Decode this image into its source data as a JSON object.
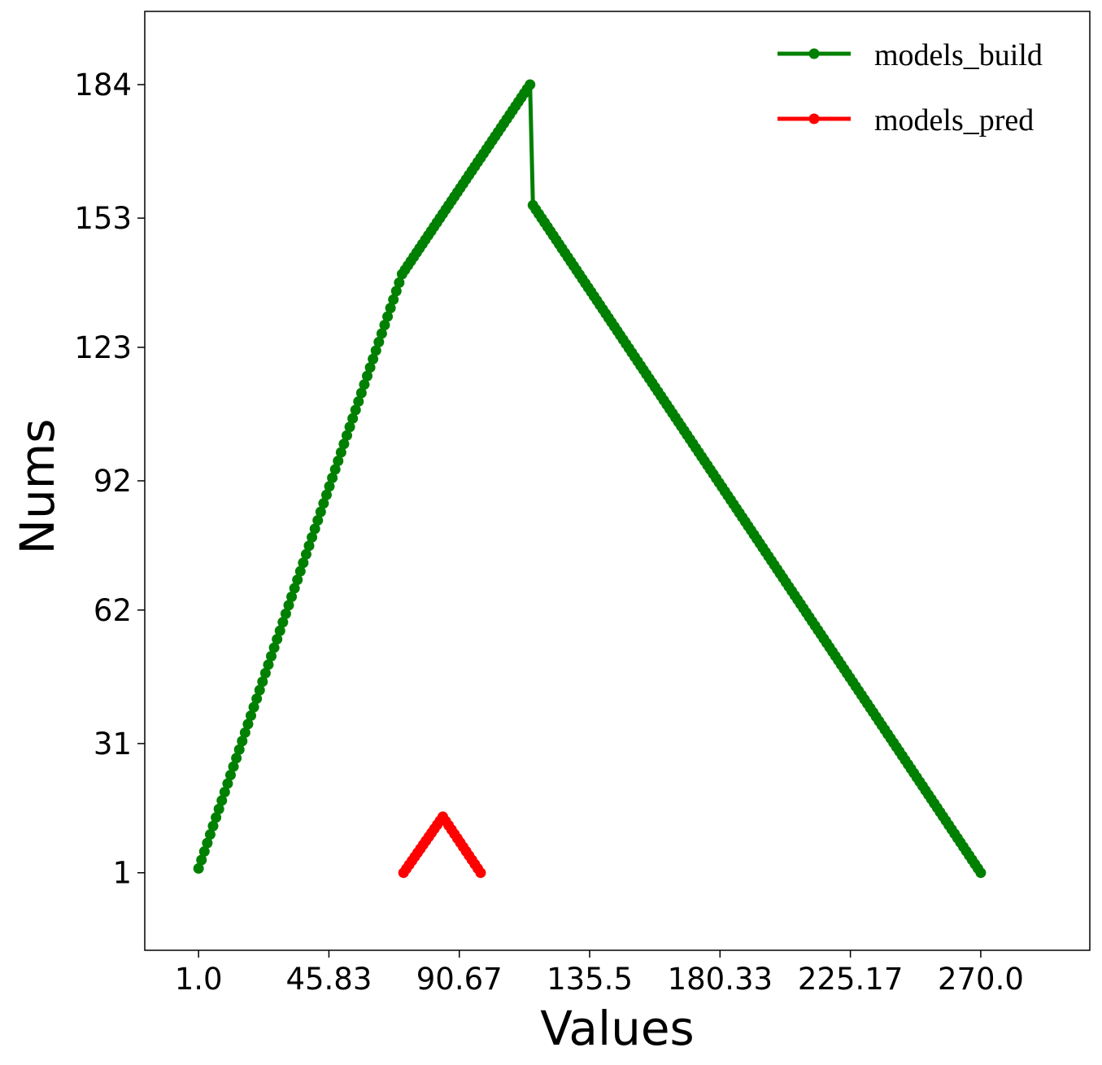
{
  "chart_data": {
    "type": "line",
    "xlabel": "Values",
    "ylabel": "Nums",
    "xlim": [
      -17.5,
      307.5
    ],
    "ylim": [
      -17,
      201
    ],
    "x_ticks": [
      1.0,
      45.83,
      90.67,
      135.5,
      180.33,
      225.17,
      270.0
    ],
    "x_tick_labels": [
      "1.0",
      "45.83",
      "90.67",
      "135.5",
      "180.33",
      "225.17",
      "270.0"
    ],
    "y_ticks": [
      1,
      31,
      62,
      92,
      123,
      153,
      184
    ],
    "y_tick_labels": [
      "1",
      "31",
      "62",
      "92",
      "123",
      "153",
      "184"
    ],
    "grid": false,
    "legend_position": "top-right",
    "series": [
      {
        "name": "models_build",
        "color": "#008000",
        "points": [
          [
            1,
            2
          ],
          [
            71,
            140
          ],
          [
            115,
            184
          ],
          [
            116,
            156
          ],
          [
            270,
            1
          ]
        ]
      },
      {
        "name": "models_pred",
        "color": "#ff0000",
        "points": [
          [
            71.5,
            1
          ],
          [
            85,
            14
          ],
          [
            98,
            1
          ]
        ]
      }
    ]
  }
}
